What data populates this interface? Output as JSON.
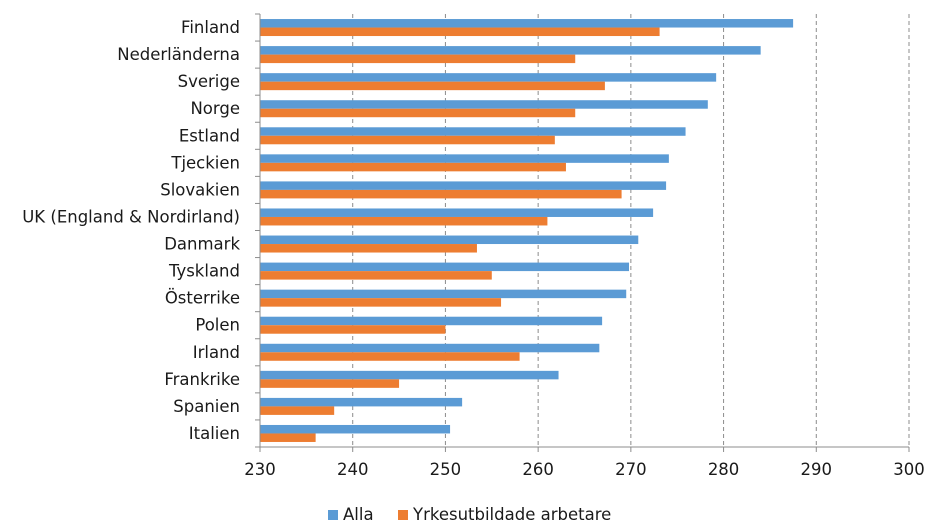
{
  "chart_data": {
    "type": "bar",
    "orientation": "horizontal",
    "categories": [
      "Finland",
      "Nederländerna",
      "Sverige",
      "Norge",
      "Estland",
      "Tjeckien",
      "Slovakien",
      "UK (England & Nordirland)",
      "Danmark",
      "Tyskland",
      "Österrike",
      "Polen",
      "Irland",
      "Frankrike",
      "Spanien",
      "Italien"
    ],
    "series": [
      {
        "name": "Alla",
        "color": "#5B9BD5",
        "values": [
          287.5,
          284,
          279.2,
          278.3,
          275.9,
          274.1,
          273.8,
          272.4,
          270.8,
          269.8,
          269.5,
          266.9,
          266.6,
          262.2,
          251.8,
          250.5
        ]
      },
      {
        "name": "Yrkesutbildade arbetare",
        "color": "#ED7D31",
        "values": [
          273.1,
          264,
          267.2,
          264,
          261.8,
          263,
          269,
          261,
          253.4,
          255,
          256,
          250,
          258,
          245,
          238,
          236
        ]
      }
    ],
    "xlim": [
      230,
      300
    ],
    "xticks": [
      "230",
      "240",
      "250",
      "260",
      "270",
      "280",
      "290",
      "300"
    ],
    "grid": "vertical-dashed",
    "legend": "bottom",
    "title": "",
    "xlabel": "",
    "ylabel": ""
  }
}
